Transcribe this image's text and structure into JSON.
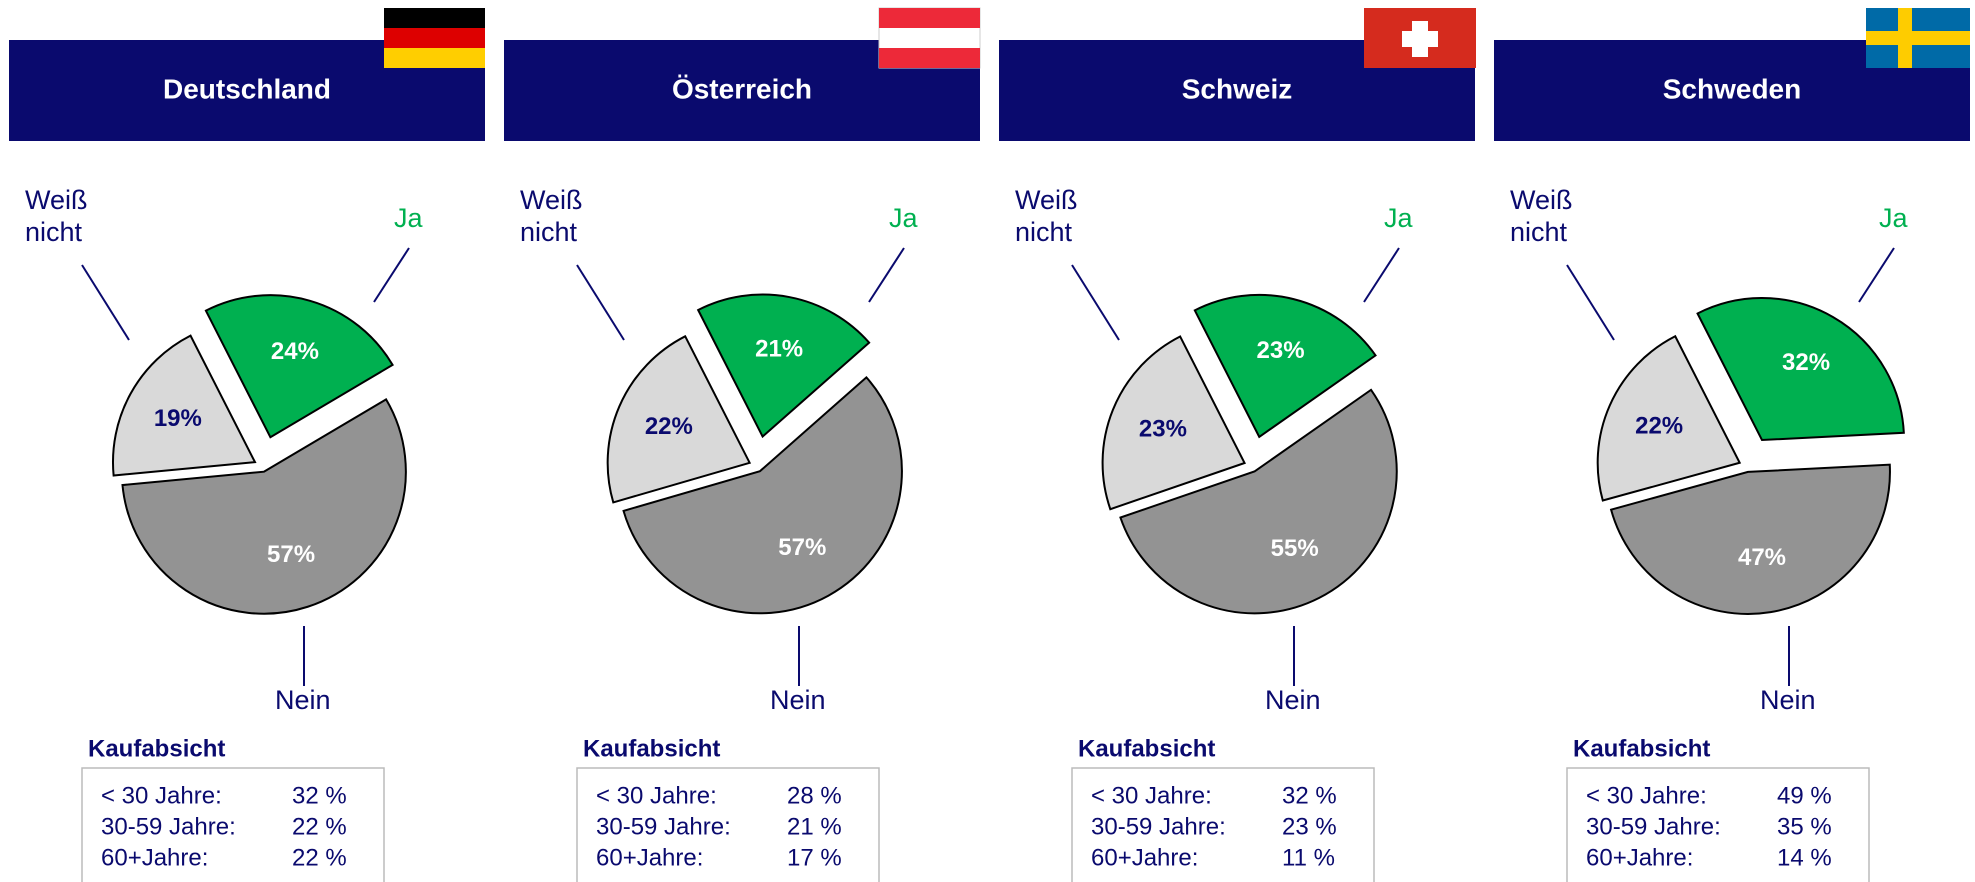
{
  "chart_data": [
    {
      "type": "pie",
      "title": "Deutschland",
      "categories": [
        "Ja",
        "Nein",
        "Weiß nicht"
      ],
      "values": [
        24,
        57,
        19
      ],
      "value_labels": [
        "24%",
        "57%",
        "19%"
      ],
      "colors": [
        "#00b050",
        "#939393",
        "#d9d9d9"
      ],
      "table": {
        "title": "Kaufabsicht",
        "rows": [
          [
            "< 30 Jahre:",
            "32 %"
          ],
          [
            "30-59 Jahre:",
            "22 %"
          ],
          [
            "60+Jahre:",
            "22 %"
          ]
        ]
      }
    },
    {
      "type": "pie",
      "title": "Österreich",
      "categories": [
        "Ja",
        "Nein",
        "Weiß nicht"
      ],
      "values": [
        21,
        57,
        22
      ],
      "value_labels": [
        "21%",
        "57%",
        "22%"
      ],
      "colors": [
        "#00b050",
        "#939393",
        "#d9d9d9"
      ],
      "table": {
        "title": "Kaufabsicht",
        "rows": [
          [
            "< 30 Jahre:",
            "28 %"
          ],
          [
            "30-59 Jahre:",
            "21 %"
          ],
          [
            "60+Jahre:",
            "17 %"
          ]
        ]
      }
    },
    {
      "type": "pie",
      "title": "Schweiz",
      "categories": [
        "Ja",
        "Nein",
        "Weiß nicht"
      ],
      "values": [
        23,
        55,
        23
      ],
      "value_labels": [
        "23%",
        "55%",
        "23%"
      ],
      "colors": [
        "#00b050",
        "#939393",
        "#d9d9d9"
      ],
      "table": {
        "title": "Kaufabsicht",
        "rows": [
          [
            "< 30 Jahre:",
            "32 %"
          ],
          [
            "30-59 Jahre:",
            "23 %"
          ],
          [
            "60+Jahre:",
            "11 %"
          ]
        ]
      }
    },
    {
      "type": "pie",
      "title": "Schweden",
      "categories": [
        "Ja",
        "Nein",
        "Weiß nicht"
      ],
      "values": [
        32,
        47,
        22
      ],
      "value_labels": [
        "32%",
        "47%",
        "22%"
      ],
      "colors": [
        "#00b050",
        "#939393",
        "#d9d9d9"
      ],
      "table": {
        "title": "Kaufabsicht",
        "rows": [
          [
            "< 30 Jahre:",
            "49 %"
          ],
          [
            "30-59 Jahre:",
            "35 %"
          ],
          [
            "60+Jahre:",
            "14 %"
          ]
        ]
      }
    }
  ]
}
